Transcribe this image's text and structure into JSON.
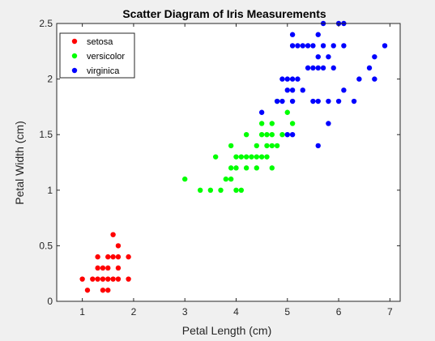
{
  "chart_data": {
    "type": "scatter",
    "title": "Scatter Diagram of Iris Measurements",
    "xlabel": "Petal Length (cm)",
    "ylabel": "Petal Width (cm)",
    "xlim": [
      0.5,
      7.2
    ],
    "ylim": [
      0,
      2.5
    ],
    "xticks": [
      1,
      2,
      3,
      4,
      5,
      6,
      7
    ],
    "yticks": [
      0,
      0.5,
      1,
      1.5,
      2,
      2.5
    ],
    "xtick_labels": [
      "1",
      "2",
      "3",
      "4",
      "5",
      "6",
      "7"
    ],
    "ytick_labels": [
      "0",
      "0.5",
      "1",
      "1.5",
      "2",
      "2.5"
    ],
    "grid": false,
    "legend_position": "top-left",
    "series": [
      {
        "name": "setosa",
        "color": "#ff0000",
        "points": [
          [
            1.0,
            0.2
          ],
          [
            1.1,
            0.1
          ],
          [
            1.2,
            0.2
          ],
          [
            1.3,
            0.2
          ],
          [
            1.3,
            0.3
          ],
          [
            1.3,
            0.4
          ],
          [
            1.4,
            0.1
          ],
          [
            1.4,
            0.2
          ],
          [
            1.4,
            0.3
          ],
          [
            1.5,
            0.1
          ],
          [
            1.5,
            0.2
          ],
          [
            1.5,
            0.3
          ],
          [
            1.5,
            0.4
          ],
          [
            1.6,
            0.2
          ],
          [
            1.6,
            0.4
          ],
          [
            1.6,
            0.6
          ],
          [
            1.7,
            0.2
          ],
          [
            1.7,
            0.3
          ],
          [
            1.7,
            0.4
          ],
          [
            1.7,
            0.5
          ],
          [
            1.9,
            0.2
          ],
          [
            1.9,
            0.4
          ]
        ]
      },
      {
        "name": "versicolor",
        "color": "#00ff00",
        "points": [
          [
            3.0,
            1.1
          ],
          [
            3.3,
            1.0
          ],
          [
            3.5,
            1.0
          ],
          [
            3.6,
            1.3
          ],
          [
            3.7,
            1.0
          ],
          [
            3.8,
            1.1
          ],
          [
            3.9,
            1.1
          ],
          [
            3.9,
            1.2
          ],
          [
            3.9,
            1.4
          ],
          [
            4.0,
            1.0
          ],
          [
            4.0,
            1.2
          ],
          [
            4.0,
            1.3
          ],
          [
            4.1,
            1.0
          ],
          [
            4.1,
            1.3
          ],
          [
            4.2,
            1.2
          ],
          [
            4.2,
            1.3
          ],
          [
            4.2,
            1.5
          ],
          [
            4.3,
            1.3
          ],
          [
            4.4,
            1.2
          ],
          [
            4.4,
            1.3
          ],
          [
            4.4,
            1.4
          ],
          [
            4.5,
            1.3
          ],
          [
            4.5,
            1.5
          ],
          [
            4.5,
            1.6
          ],
          [
            4.6,
            1.3
          ],
          [
            4.6,
            1.4
          ],
          [
            4.6,
            1.5
          ],
          [
            4.7,
            1.2
          ],
          [
            4.7,
            1.4
          ],
          [
            4.7,
            1.5
          ],
          [
            4.7,
            1.6
          ],
          [
            4.8,
            1.4
          ],
          [
            4.8,
            1.8
          ],
          [
            4.9,
            1.5
          ],
          [
            5.0,
            1.7
          ],
          [
            5.1,
            1.6
          ]
        ]
      },
      {
        "name": "virginica",
        "color": "#0000ff",
        "points": [
          [
            4.5,
            1.7
          ],
          [
            4.8,
            1.8
          ],
          [
            4.9,
            1.8
          ],
          [
            4.9,
            2.0
          ],
          [
            5.0,
            1.5
          ],
          [
            5.0,
            1.9
          ],
          [
            5.0,
            2.0
          ],
          [
            5.1,
            1.5
          ],
          [
            5.1,
            1.8
          ],
          [
            5.1,
            1.9
          ],
          [
            5.1,
            2.0
          ],
          [
            5.1,
            2.3
          ],
          [
            5.1,
            2.4
          ],
          [
            5.2,
            2.0
          ],
          [
            5.2,
            2.3
          ],
          [
            5.3,
            1.9
          ],
          [
            5.3,
            2.3
          ],
          [
            5.4,
            2.1
          ],
          [
            5.4,
            2.3
          ],
          [
            5.5,
            1.8
          ],
          [
            5.5,
            2.1
          ],
          [
            5.5,
            2.3
          ],
          [
            5.6,
            1.4
          ],
          [
            5.6,
            1.8
          ],
          [
            5.6,
            2.1
          ],
          [
            5.6,
            2.2
          ],
          [
            5.6,
            2.4
          ],
          [
            5.7,
            2.1
          ],
          [
            5.7,
            2.3
          ],
          [
            5.7,
            2.5
          ],
          [
            5.8,
            1.6
          ],
          [
            5.8,
            1.8
          ],
          [
            5.8,
            2.2
          ],
          [
            5.9,
            2.1
          ],
          [
            5.9,
            2.3
          ],
          [
            6.0,
            1.8
          ],
          [
            6.0,
            2.5
          ],
          [
            6.1,
            1.9
          ],
          [
            6.1,
            2.3
          ],
          [
            6.1,
            2.5
          ],
          [
            6.3,
            1.8
          ],
          [
            6.4,
            2.0
          ],
          [
            6.6,
            2.1
          ],
          [
            6.7,
            2.0
          ],
          [
            6.7,
            2.2
          ],
          [
            6.9,
            2.3
          ]
        ]
      }
    ]
  }
}
